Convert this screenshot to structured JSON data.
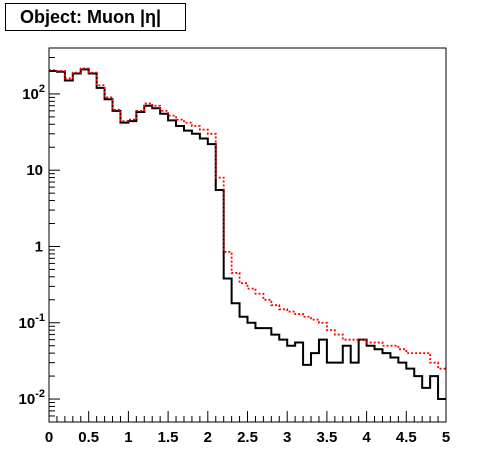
{
  "chart_data": {
    "type": "line",
    "title": "Object: Muon |η|",
    "xlabel": "",
    "ylabel": "",
    "xlim": [
      0,
      5
    ],
    "ylim": [
      0.005,
      400
    ],
    "yscale": "log",
    "grid": false,
    "x_ticks": [
      "0",
      "0.5",
      "1",
      "1.5",
      "2",
      "2.5",
      "3",
      "3.5",
      "4",
      "4.5",
      "5"
    ],
    "y_ticks": [
      {
        "value": 0.01,
        "base": "10",
        "exp": "-2"
      },
      {
        "value": 0.1,
        "base": "10",
        "exp": "-1"
      },
      {
        "value": 1,
        "base": "1",
        "exp": ""
      },
      {
        "value": 10,
        "base": "10",
        "exp": ""
      },
      {
        "value": 100,
        "base": "10",
        "exp": "2"
      }
    ],
    "bin_width": 0.1,
    "series": [
      {
        "color": "#000000",
        "style": "solid",
        "values": [
          200,
          195,
          150,
          185,
          210,
          185,
          120,
          85,
          60,
          42,
          44,
          58,
          70,
          65,
          55,
          45,
          38,
          33,
          30,
          26,
          22,
          5.5,
          0.38,
          0.18,
          0.12,
          0.1,
          0.085,
          0.085,
          0.07,
          0.06,
          0.05,
          0.055,
          0.028,
          0.04,
          0.06,
          0.03,
          0.03,
          0.05,
          0.03,
          0.06,
          0.05,
          0.045,
          0.04,
          0.035,
          0.03,
          0.025,
          0.02,
          0.014,
          0.02,
          0.01
        ]
      },
      {
        "color": "#ff0000",
        "style": "dotted",
        "values": [
          205,
          200,
          160,
          190,
          215,
          190,
          130,
          90,
          62,
          44,
          46,
          60,
          75,
          70,
          60,
          52,
          46,
          42,
          38,
          34,
          30,
          8,
          0.85,
          0.45,
          0.33,
          0.28,
          0.24,
          0.2,
          0.17,
          0.15,
          0.14,
          0.13,
          0.12,
          0.11,
          0.1,
          0.08,
          0.07,
          0.06,
          0.06,
          0.06,
          0.055,
          0.055,
          0.05,
          0.05,
          0.045,
          0.04,
          0.04,
          0.04,
          0.03,
          0.025
        ]
      }
    ]
  }
}
